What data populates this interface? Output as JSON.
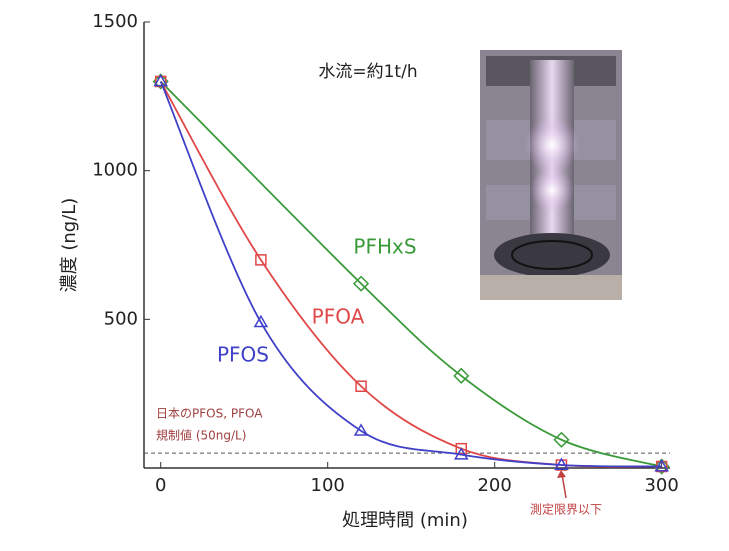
{
  "chart_data": {
    "type": "line",
    "xlabel": "処理時間 (min)",
    "ylabel": "濃度 (ng/L)",
    "annotation": "水流=約1t/h",
    "threshold": 50,
    "threshold_label": [
      "日本のPFOS, PFOA",
      "規制値 (50ng/L)"
    ],
    "detection_label": "測定限界以下",
    "xlim": [
      -10,
      305
    ],
    "ylim": [
      0,
      1500
    ],
    "xticks": [
      0,
      100,
      200,
      300
    ],
    "yticks": [
      500,
      1000,
      1500
    ],
    "series": [
      {
        "name": "PFHxS",
        "color": "#3a9a3a",
        "marker": "diamond",
        "x": [
          0,
          120,
          180,
          240,
          300
        ],
        "values": [
          1300,
          620,
          310,
          95,
          5
        ]
      },
      {
        "name": "PFOA",
        "color": "#e04848",
        "marker": "square",
        "x": [
          0,
          60,
          120,
          180,
          240,
          300
        ],
        "values": [
          1300,
          700,
          275,
          65,
          10,
          5
        ]
      },
      {
        "name": "PFOS",
        "color": "#4040c8",
        "marker": "triangle",
        "x": [
          0,
          60,
          120,
          180,
          240,
          300
        ],
        "values": [
          1300,
          490,
          125,
          45,
          10,
          5
        ]
      }
    ]
  }
}
